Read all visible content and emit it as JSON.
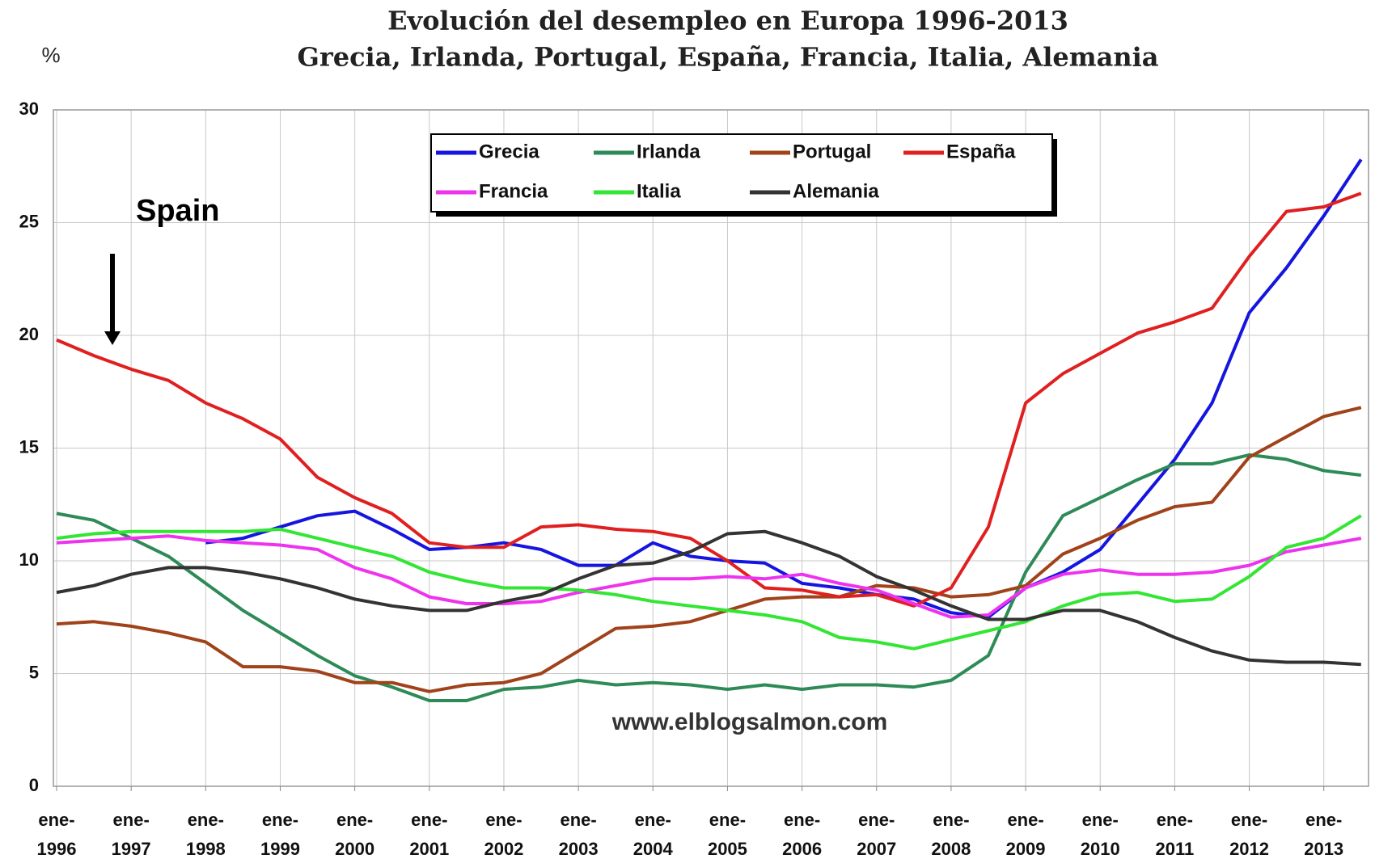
{
  "chart_data": {
    "type": "line",
    "title": "Evolución del desempleo en Europa 1996-2013",
    "subtitle": "Grecia, Irlanda, Portugal, España, Francia, Italia, Alemania",
    "ylabel": "%",
    "annotations": [
      "Spain",
      "www.elblogsalmon.com"
    ],
    "x": [
      1996,
      1996.5,
      1997,
      1997.5,
      1998,
      1998.5,
      1999,
      1999.5,
      2000,
      2000.5,
      2001,
      2001.5,
      2002,
      2002.5,
      2003,
      2003.5,
      2004,
      2004.5,
      2005,
      2005.5,
      2006,
      2006.5,
      2007,
      2007.5,
      2008,
      2008.5,
      2009,
      2009.5,
      2010,
      2010.5,
      2011,
      2011.5,
      2012,
      2012.5,
      2013,
      2013.5
    ],
    "series": [
      {
        "name": "Grecia",
        "color": "#1515e0",
        "values": [
          null,
          null,
          null,
          null,
          10.8,
          11.0,
          11.5,
          12.0,
          12.2,
          11.4,
          10.5,
          10.6,
          10.8,
          10.5,
          9.8,
          9.8,
          10.8,
          10.2,
          10.0,
          9.9,
          9.0,
          8.8,
          8.5,
          8.3,
          7.7,
          7.5,
          8.8,
          9.5,
          10.5,
          12.5,
          14.5,
          17.0,
          21.0,
          23.0,
          25.3,
          27.8
        ]
      },
      {
        "name": "Irlanda",
        "color": "#2e8b57",
        "values": [
          12.1,
          11.8,
          11.0,
          10.2,
          9.0,
          7.8,
          6.8,
          5.8,
          4.9,
          4.4,
          3.8,
          3.8,
          4.3,
          4.4,
          4.7,
          4.5,
          4.6,
          4.5,
          4.3,
          4.5,
          4.3,
          4.5,
          4.5,
          4.4,
          4.7,
          5.8,
          9.5,
          12.0,
          12.8,
          13.6,
          14.3,
          14.3,
          14.7,
          14.5,
          14.0,
          13.8
        ]
      },
      {
        "name": "Portugal",
        "color": "#a0421a",
        "values": [
          7.2,
          7.3,
          7.1,
          6.8,
          6.4,
          5.3,
          5.3,
          5.1,
          4.6,
          4.6,
          4.2,
          4.5,
          4.6,
          5.0,
          6.0,
          7.0,
          7.1,
          7.3,
          7.8,
          8.3,
          8.4,
          8.4,
          8.9,
          8.8,
          8.4,
          8.5,
          8.9,
          10.3,
          11.0,
          11.8,
          12.4,
          12.6,
          14.6,
          15.5,
          16.4,
          16.8
        ]
      },
      {
        "name": "España",
        "color": "#e02020",
        "values": [
          19.8,
          19.1,
          18.5,
          18.0,
          17.0,
          16.3,
          15.4,
          13.7,
          12.8,
          12.1,
          10.8,
          10.6,
          10.6,
          11.5,
          11.6,
          11.4,
          11.3,
          11.0,
          10.0,
          8.8,
          8.7,
          8.4,
          8.5,
          8.0,
          8.8,
          11.5,
          17.0,
          18.3,
          19.2,
          20.1,
          20.6,
          21.2,
          23.5,
          25.5,
          25.7,
          26.3
        ]
      },
      {
        "name": "Francia",
        "color": "#ee33ee",
        "values": [
          10.8,
          10.9,
          11.0,
          11.1,
          10.9,
          10.8,
          10.7,
          10.5,
          9.7,
          9.2,
          8.4,
          8.1,
          8.1,
          8.2,
          8.6,
          8.9,
          9.2,
          9.2,
          9.3,
          9.2,
          9.4,
          9.0,
          8.7,
          8.1,
          7.5,
          7.6,
          8.8,
          9.4,
          9.6,
          9.4,
          9.4,
          9.5,
          9.8,
          10.4,
          10.7,
          11.0
        ]
      },
      {
        "name": "Italia",
        "color": "#33e633",
        "values": [
          11.0,
          11.2,
          11.3,
          11.3,
          11.3,
          11.3,
          11.4,
          11.0,
          10.6,
          10.2,
          9.5,
          9.1,
          8.8,
          8.8,
          8.7,
          8.5,
          8.2,
          8.0,
          7.8,
          7.6,
          7.3,
          6.6,
          6.4,
          6.1,
          6.5,
          6.9,
          7.3,
          8.0,
          8.5,
          8.6,
          8.2,
          8.3,
          9.3,
          10.6,
          11.0,
          12.0
        ]
      },
      {
        "name": "Alemania",
        "color": "#333333",
        "values": [
          8.6,
          8.9,
          9.4,
          9.7,
          9.7,
          9.5,
          9.2,
          8.8,
          8.3,
          8.0,
          7.8,
          7.8,
          8.2,
          8.5,
          9.2,
          9.8,
          9.9,
          10.4,
          11.2,
          11.3,
          10.8,
          10.2,
          9.3,
          8.7,
          8.0,
          7.4,
          7.4,
          7.8,
          7.8,
          7.3,
          6.6,
          6.0,
          5.6,
          5.5,
          5.5,
          5.4
        ]
      }
    ],
    "xlim": [
      1996,
      2013.6
    ],
    "xticks": [
      {
        "value": 1996,
        "label": "ene-1996"
      },
      {
        "value": 1997,
        "label": "ene-1997"
      },
      {
        "value": 1998,
        "label": "ene-1998"
      },
      {
        "value": 1999,
        "label": "ene-1999"
      },
      {
        "value": 2000,
        "label": "ene-2000"
      },
      {
        "value": 2001,
        "label": "ene-2001"
      },
      {
        "value": 2002,
        "label": "ene-2002"
      },
      {
        "value": 2003,
        "label": "ene-2003"
      },
      {
        "value": 2004,
        "label": "ene-2004"
      },
      {
        "value": 2005,
        "label": "ene-2005"
      },
      {
        "value": 2006,
        "label": "ene-2006"
      },
      {
        "value": 2007,
        "label": "ene-2007"
      },
      {
        "value": 2008,
        "label": "ene-2008"
      },
      {
        "value": 2009,
        "label": "ene-2009"
      },
      {
        "value": 2010,
        "label": "ene-2010"
      },
      {
        "value": 2011,
        "label": "ene-2011"
      },
      {
        "value": 2012,
        "label": "ene-2012"
      },
      {
        "value": 2013,
        "label": "ene-2013"
      }
    ],
    "ylim": [
      0,
      30
    ],
    "yticks": [
      0,
      5,
      10,
      15,
      20,
      25,
      30
    ],
    "grid": true,
    "legend": "top"
  }
}
